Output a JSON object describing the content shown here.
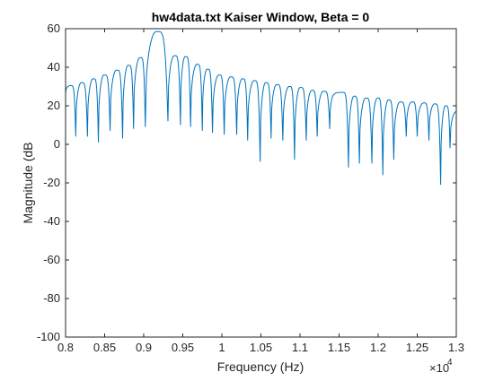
{
  "chart_data": {
    "type": "line",
    "title": "hw4data.txt Kaiser Window, Beta = 0",
    "xlabel": "Frequency (Hz)",
    "ylabel": "Magnitude (dB",
    "xlim": [
      8000,
      13000
    ],
    "ylim": [
      -100,
      60
    ],
    "x_exponent_label": "×10",
    "x_exponent_power": "4",
    "x_ticks": [
      {
        "value": 8000,
        "label": "0.8"
      },
      {
        "value": 8500,
        "label": "0.85"
      },
      {
        "value": 9000,
        "label": "0.9"
      },
      {
        "value": 9500,
        "label": "0.95"
      },
      {
        "value": 10000,
        "label": "1"
      },
      {
        "value": 10500,
        "label": "1.05"
      },
      {
        "value": 11000,
        "label": "1.1"
      },
      {
        "value": 11500,
        "label": "1.15"
      },
      {
        "value": 12000,
        "label": "1.2"
      },
      {
        "value": 12500,
        "label": "1.25"
      },
      {
        "value": 13000,
        "label": "1.3"
      }
    ],
    "y_ticks": [
      {
        "value": 60,
        "label": "60"
      },
      {
        "value": 40,
        "label": "40"
      },
      {
        "value": 20,
        "label": "20"
      },
      {
        "value": 0,
        "label": "0"
      },
      {
        "value": -20,
        "label": "-20"
      },
      {
        "value": -40,
        "label": "-40"
      },
      {
        "value": -60,
        "label": "-60"
      },
      {
        "value": -80,
        "label": "-80"
      },
      {
        "value": -100,
        "label": "-100"
      }
    ],
    "grid": false,
    "line_color": "#0072BD",
    "nulls": [
      {
        "x": 8130,
        "y": 4
      },
      {
        "x": 8280,
        "y": 4
      },
      {
        "x": 8420,
        "y": 1
      },
      {
        "x": 8570,
        "y": 7
      },
      {
        "x": 8730,
        "y": 3
      },
      {
        "x": 8870,
        "y": 8
      },
      {
        "x": 9020,
        "y": 9
      },
      {
        "x": 9310,
        "y": 12
      },
      {
        "x": 9470,
        "y": 10
      },
      {
        "x": 9600,
        "y": 9
      },
      {
        "x": 9750,
        "y": 7
      },
      {
        "x": 9880,
        "y": 6
      },
      {
        "x": 10030,
        "y": 5
      },
      {
        "x": 10190,
        "y": 5
      },
      {
        "x": 10330,
        "y": 2
      },
      {
        "x": 10490,
        "y": -9
      },
      {
        "x": 10630,
        "y": 3
      },
      {
        "x": 10780,
        "y": 2
      },
      {
        "x": 10930,
        "y": -8
      },
      {
        "x": 11080,
        "y": 2
      },
      {
        "x": 11220,
        "y": 4
      },
      {
        "x": 11380,
        "y": 8
      },
      {
        "x": 11620,
        "y": -12
      },
      {
        "x": 11760,
        "y": -10
      },
      {
        "x": 11920,
        "y": -10
      },
      {
        "x": 12060,
        "y": -16
      },
      {
        "x": 12200,
        "y": -8
      },
      {
        "x": 12360,
        "y": 4
      },
      {
        "x": 12500,
        "y": 4
      },
      {
        "x": 12650,
        "y": 2
      },
      {
        "x": 12800,
        "y": -21
      },
      {
        "x": 12920,
        "y": -2
      }
    ],
    "peaks": [
      {
        "x": 8060,
        "y": 30.5
      },
      {
        "x": 8200,
        "y": 32
      },
      {
        "x": 8350,
        "y": 34
      },
      {
        "x": 8490,
        "y": 36
      },
      {
        "x": 8650,
        "y": 38.5
      },
      {
        "x": 8800,
        "y": 41
      },
      {
        "x": 8950,
        "y": 45
      },
      {
        "x": 9160,
        "y": 58.5
      },
      {
        "x": 9390,
        "y": 46
      },
      {
        "x": 9530,
        "y": 45.5
      },
      {
        "x": 9680,
        "y": 41.5
      },
      {
        "x": 9810,
        "y": 39
      },
      {
        "x": 9960,
        "y": 36
      },
      {
        "x": 10110,
        "y": 35
      },
      {
        "x": 10260,
        "y": 34
      },
      {
        "x": 10410,
        "y": 33
      },
      {
        "x": 10560,
        "y": 32
      },
      {
        "x": 10700,
        "y": 31
      },
      {
        "x": 10860,
        "y": 30
      },
      {
        "x": 11000,
        "y": 29.5
      },
      {
        "x": 11150,
        "y": 28
      },
      {
        "x": 11300,
        "y": 27.5
      },
      {
        "x": 11440,
        "y": 26
      },
      {
        "x": 11540,
        "y": 27
      },
      {
        "x": 11690,
        "y": 25
      },
      {
        "x": 11840,
        "y": 24
      },
      {
        "x": 11990,
        "y": 24
      },
      {
        "x": 12130,
        "y": 23
      },
      {
        "x": 12280,
        "y": 22
      },
      {
        "x": 12430,
        "y": 22
      },
      {
        "x": 12580,
        "y": 21.5
      },
      {
        "x": 12720,
        "y": 21
      },
      {
        "x": 12860,
        "y": 20
      }
    ],
    "start_point": {
      "x": 8000,
      "y": 26.5
    },
    "end_point": {
      "x": 13000,
      "y": 17
    }
  }
}
